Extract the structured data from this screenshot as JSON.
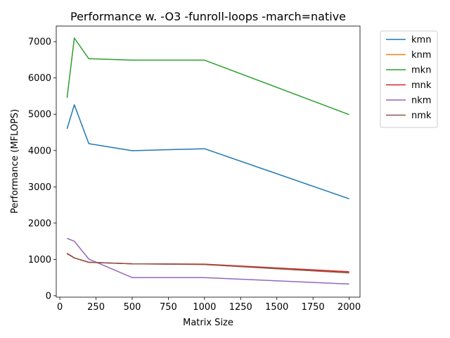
{
  "chart_data": {
    "type": "line",
    "title": "Performance w. -O3 -funroll-loops -march=native",
    "xlabel": "Matrix Size",
    "ylabel": "Performance (MFLOPS)",
    "xlim": [
      -25,
      2075
    ],
    "ylim": [
      -40,
      7430
    ],
    "xticks": [
      0,
      250,
      500,
      750,
      1000,
      1250,
      1500,
      1750,
      2000
    ],
    "yticks": [
      0,
      1000,
      2000,
      3000,
      4000,
      5000,
      6000,
      7000
    ],
    "grid": false,
    "legend_position": "outside-top-right",
    "x": [
      50,
      100,
      200,
      500,
      1000,
      2000
    ],
    "series": [
      {
        "name": "kmn",
        "color": "#1f77b4",
        "values": [
          4600,
          5260,
          4190,
          3995,
          4050,
          2670
        ]
      },
      {
        "name": "knm",
        "color": "#ff7f0e",
        "values": [
          1160,
          1040,
          920,
          880,
          860,
          630
        ]
      },
      {
        "name": "mkn",
        "color": "#2ca02c",
        "values": [
          5450,
          7100,
          6530,
          6490,
          6490,
          4990
        ]
      },
      {
        "name": "mnk",
        "color": "#d62728",
        "values": [
          1170,
          1040,
          920,
          880,
          870,
          660
        ]
      },
      {
        "name": "nkm",
        "color": "#9467bd",
        "values": [
          1580,
          1500,
          1010,
          500,
          500,
          320
        ]
      },
      {
        "name": "nmk",
        "color": "#8c564b",
        "values": [
          1160,
          1040,
          920,
          880,
          860,
          630
        ]
      }
    ]
  }
}
